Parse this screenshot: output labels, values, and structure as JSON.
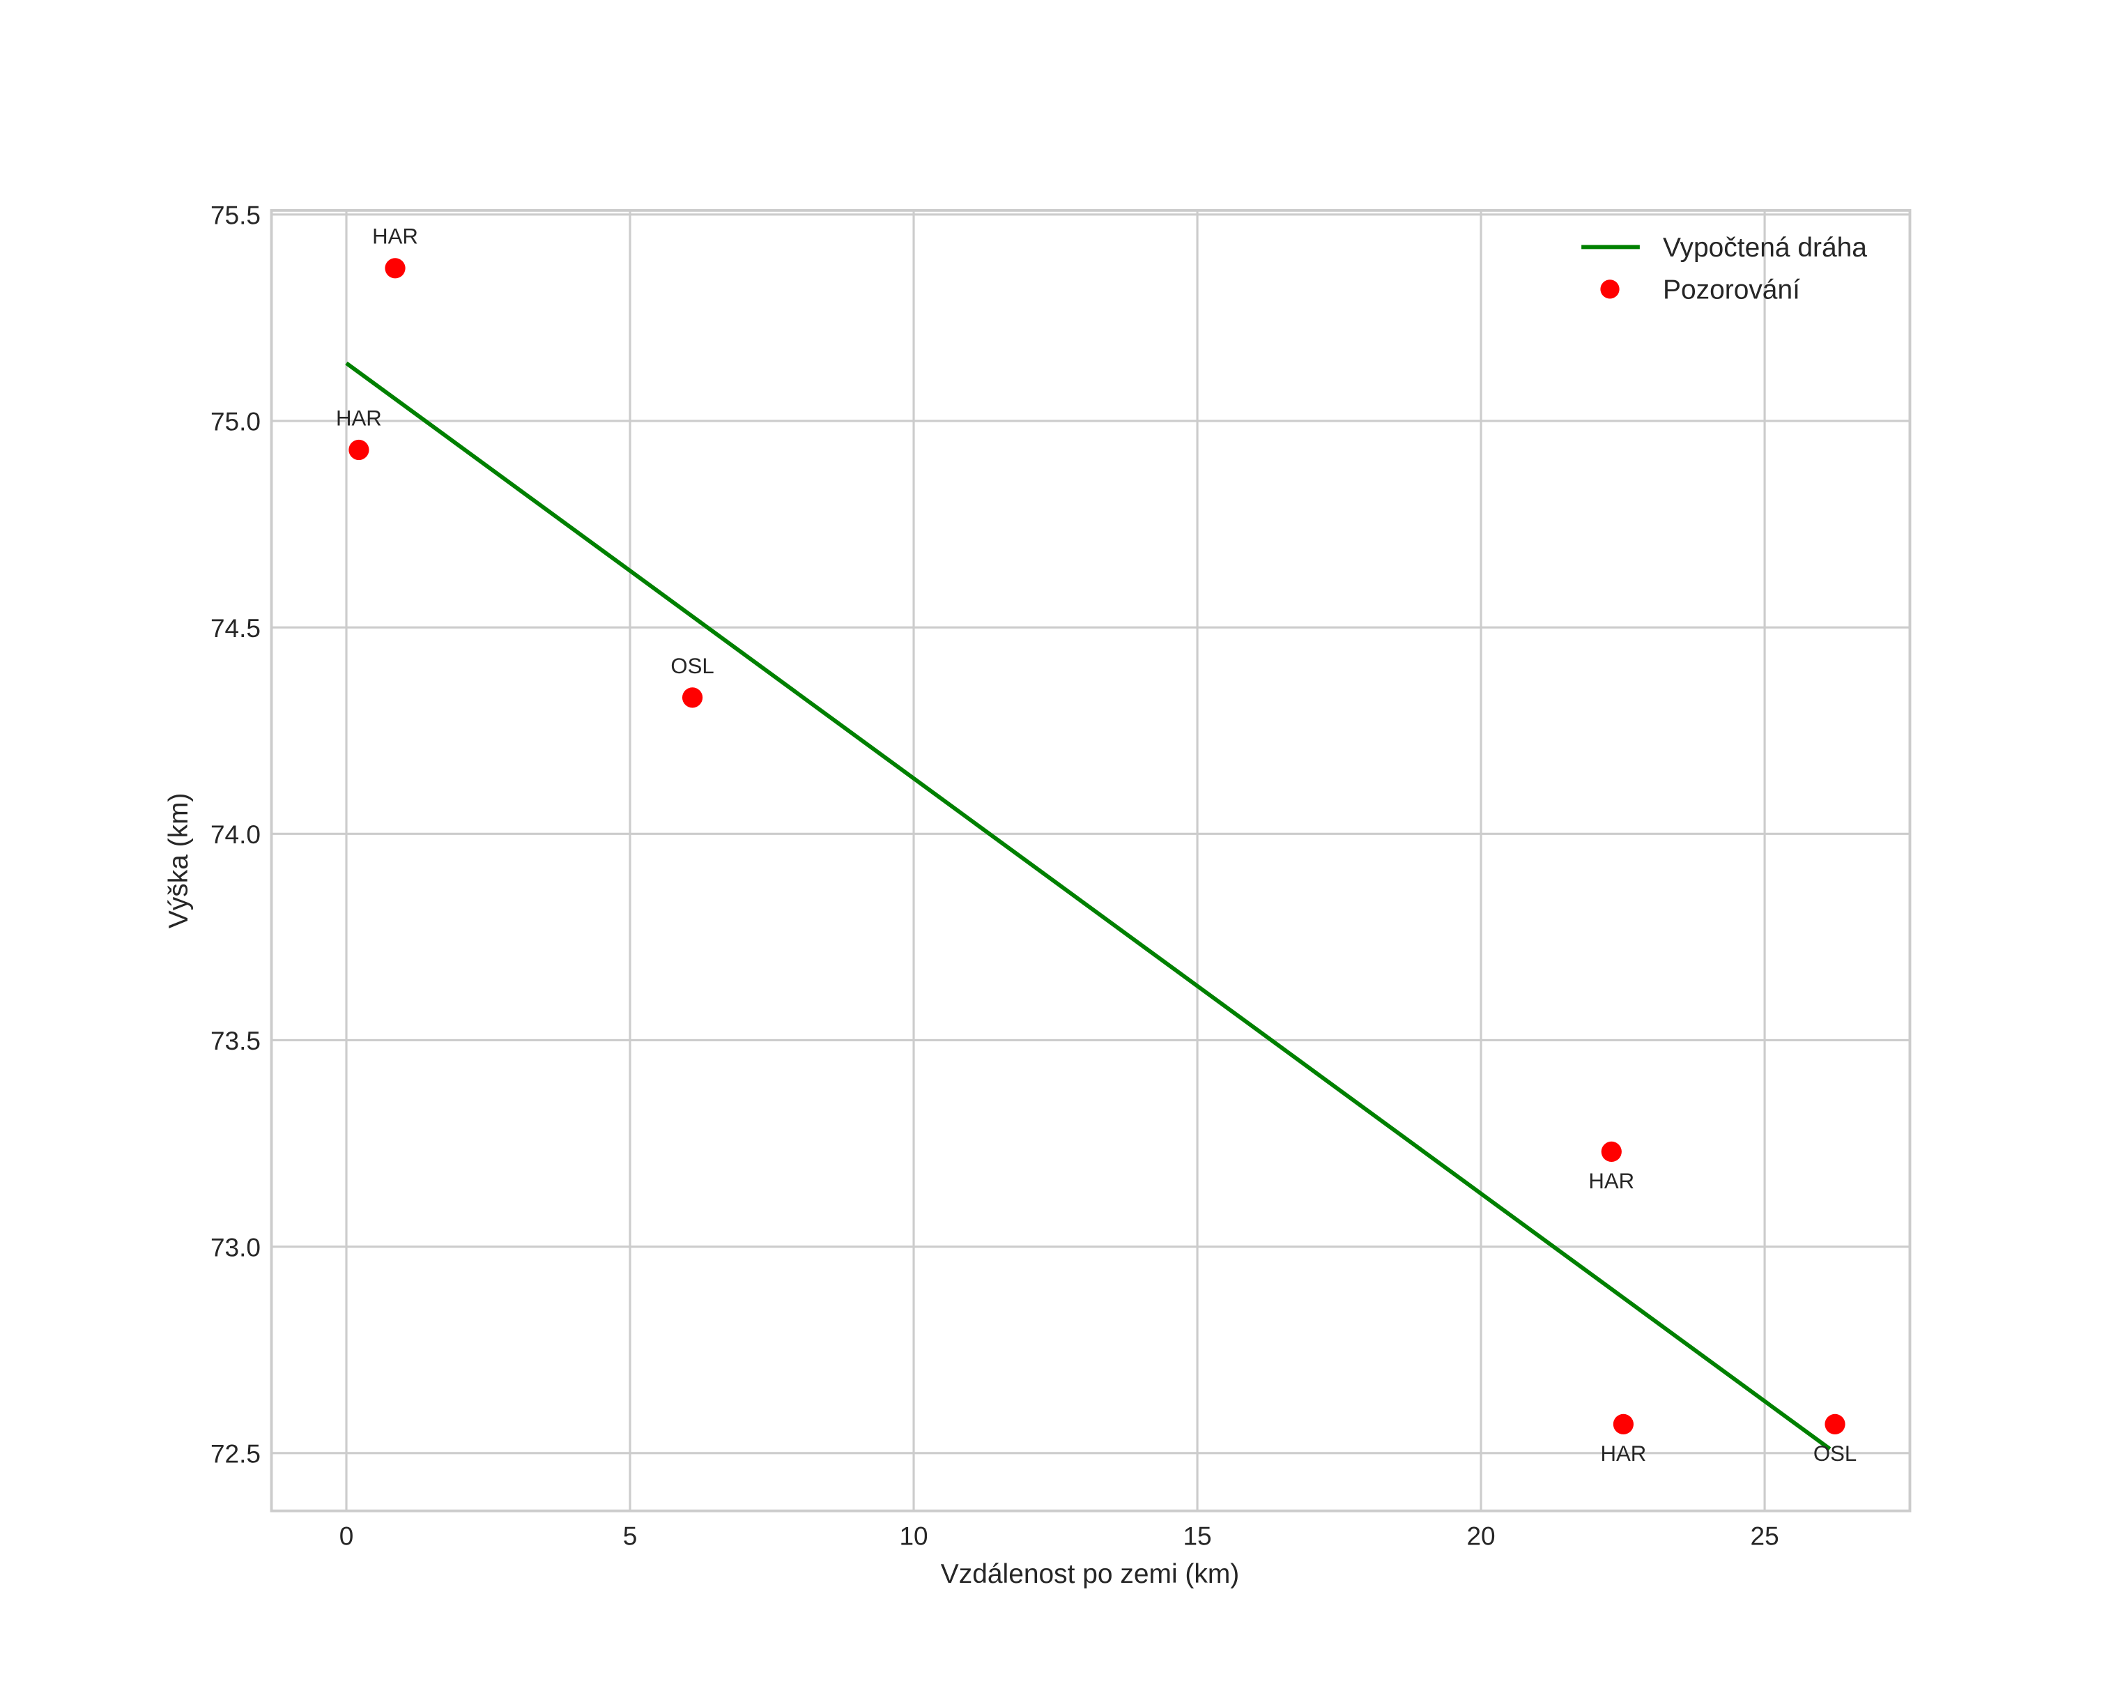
{
  "chart_data": {
    "type": "scatter",
    "title": "",
    "xlabel": "Vzdálenost po zemi (km)",
    "ylabel": "Výška (km)",
    "xlim": [
      -1.32,
      27.56
    ],
    "ylim": [
      72.36,
      75.51
    ],
    "xticks": [
      0,
      5,
      10,
      15,
      20,
      25
    ],
    "xtick_labels": [
      "0",
      "5",
      "10",
      "15",
      "20",
      "25"
    ],
    "yticks": [
      72.5,
      73.0,
      73.5,
      74.0,
      74.5,
      75.0,
      75.5
    ],
    "ytick_labels": [
      "72.5",
      "73.0",
      "73.5",
      "74.0",
      "74.5",
      "75.0",
      "75.5"
    ],
    "grid": true,
    "legend_position": "upper right",
    "series": [
      {
        "name": "Vypočtená dráha",
        "type": "line",
        "color": "#008000",
        "x": [
          0.0,
          26.15
        ],
        "y": [
          75.14,
          72.51
        ]
      },
      {
        "name": "Pozorování",
        "type": "scatter",
        "color": "#ff0000",
        "points": [
          {
            "x": 0.86,
            "y": 75.37,
            "label": "HAR",
            "label_pos": "above"
          },
          {
            "x": 0.22,
            "y": 74.93,
            "label": "HAR",
            "label_pos": "above"
          },
          {
            "x": 6.1,
            "y": 74.33,
            "label": "OSL",
            "label_pos": "above"
          },
          {
            "x": 22.3,
            "y": 73.23,
            "label": "HAR",
            "label_pos": "below"
          },
          {
            "x": 22.51,
            "y": 72.57,
            "label": "HAR",
            "label_pos": "below"
          },
          {
            "x": 26.24,
            "y": 72.57,
            "label": "OSL",
            "label_pos": "below"
          }
        ]
      }
    ]
  },
  "legend": {
    "items": [
      {
        "label": "Vypočtená dráha",
        "marker": "line",
        "color": "#008000"
      },
      {
        "label": "Pozorování",
        "marker": "dot",
        "color": "#ff0000"
      }
    ]
  },
  "colors": {
    "line": "#008000",
    "points": "#ff0000",
    "grid": "#cccccc",
    "text": "#262626"
  }
}
